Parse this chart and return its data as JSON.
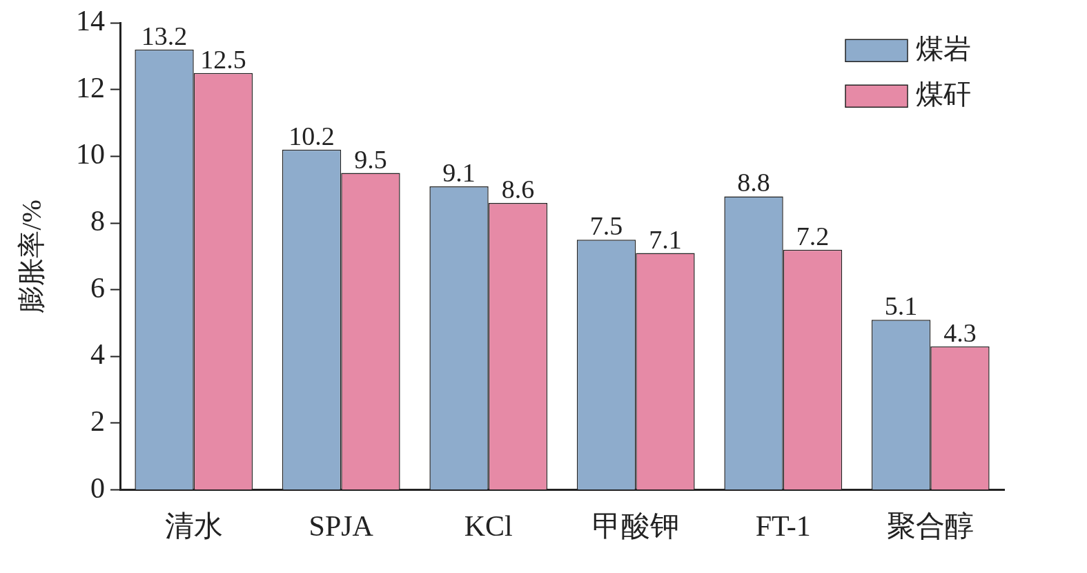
{
  "chart_data": {
    "type": "bar",
    "ylabel": "膨胀率/%",
    "categories": [
      "清水",
      "SPJA",
      "KCl",
      "甲酸钾",
      "FT-1",
      "聚合醇"
    ],
    "series": [
      {
        "name": "煤岩",
        "color": "#8eaccc",
        "values": [
          13.2,
          10.2,
          9.1,
          7.5,
          8.8,
          5.1
        ]
      },
      {
        "name": "煤矸",
        "color": "#e68aa6",
        "values": [
          12.5,
          9.5,
          8.6,
          7.1,
          7.2,
          4.3
        ]
      }
    ],
    "ylim": [
      0,
      14
    ],
    "yticks": [
      0,
      2,
      4,
      6,
      8,
      10,
      12,
      14
    ],
    "grid": false,
    "legend": "top right",
    "data_labels": true
  }
}
